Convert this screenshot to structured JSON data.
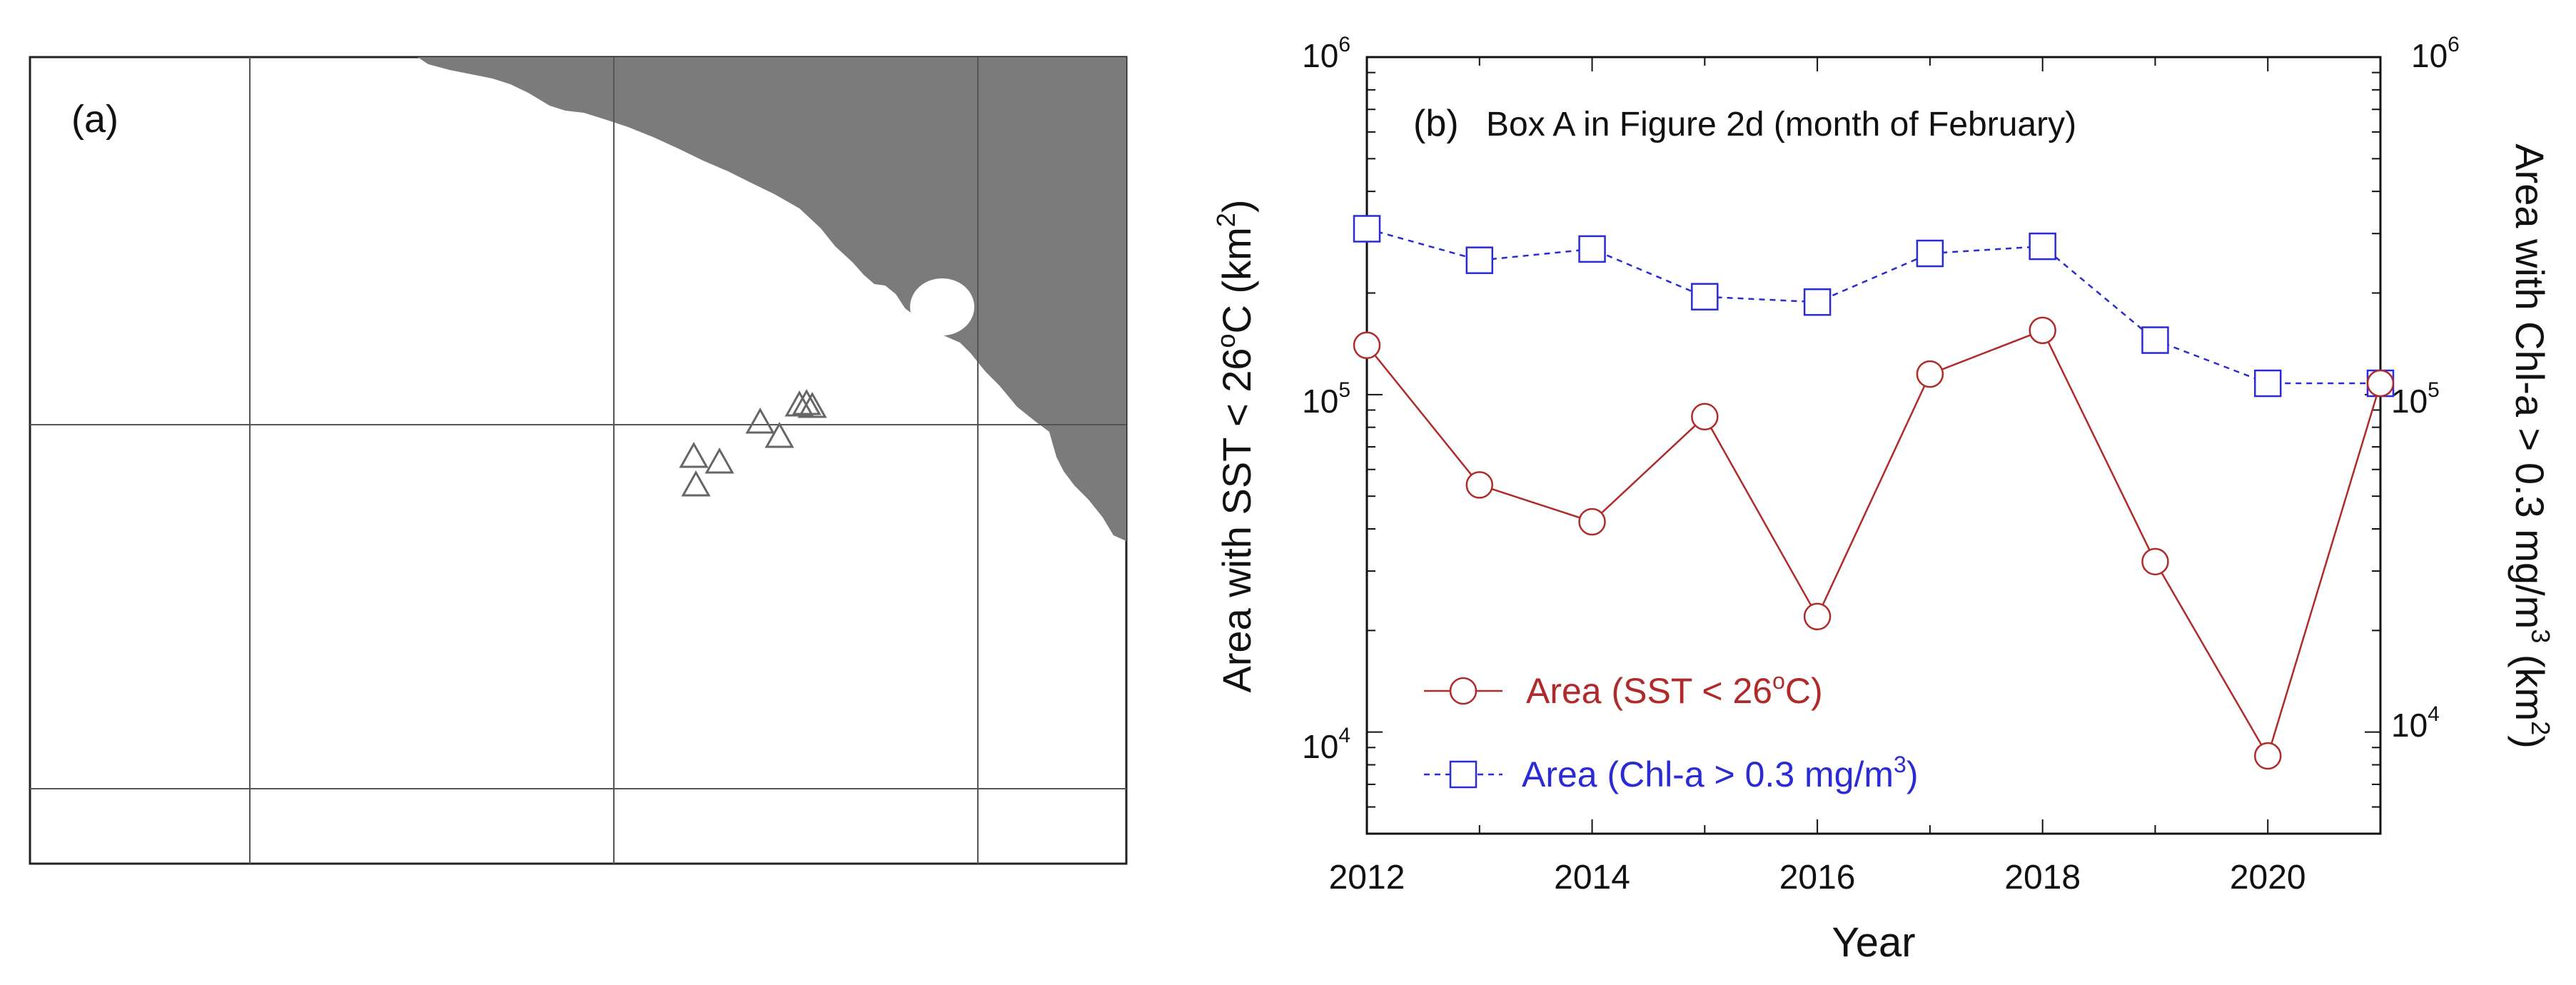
{
  "panel_a": {
    "label": "(a)"
  },
  "panel_b": {
    "label": "(b)",
    "title": "Box A in Figure 2d (month of February)"
  },
  "colors": {
    "sst": "#b02a2a",
    "chl": "#2b2bd6",
    "land": "#7b7b7b",
    "grid": "#555555"
  },
  "chart_data": {
    "type": "line",
    "x": [
      2012,
      2013,
      2014,
      2015,
      2016,
      2017,
      2018,
      2019,
      2020,
      2021
    ],
    "series": [
      {
        "name": "Area (SST < 26oC)",
        "axis": "left",
        "marker": "circle",
        "linestyle": "solid",
        "values": [
          140000,
          54000,
          42000,
          86000,
          22000,
          115000,
          155000,
          32000,
          8500,
          108000
        ]
      },
      {
        "name": "Area (Chl-a > 0.3 mg/m3)",
        "axis": "right",
        "marker": "square",
        "linestyle": "dashed",
        "values": [
          310000,
          250000,
          270000,
          195000,
          188000,
          262000,
          275000,
          145000,
          108000,
          108000
        ]
      }
    ],
    "xlabel": "Year",
    "ylabel_left": "Area with SST < 26oC (km2)",
    "ylabel_right": "Area with Chl-a > 0.3 mg/m3 (km2)",
    "xlim": [
      2012,
      2021
    ],
    "ylim": [
      5000,
      1000000
    ],
    "yscale": "log",
    "x_ticks": [
      "2012",
      "2014",
      "2016",
      "2018",
      "2020"
    ],
    "legend": {
      "position": "bottom-left",
      "entries": [
        "Area (SST < 26oC)",
        "Area (Chl-a > 0.3 mg/m3)"
      ]
    }
  }
}
